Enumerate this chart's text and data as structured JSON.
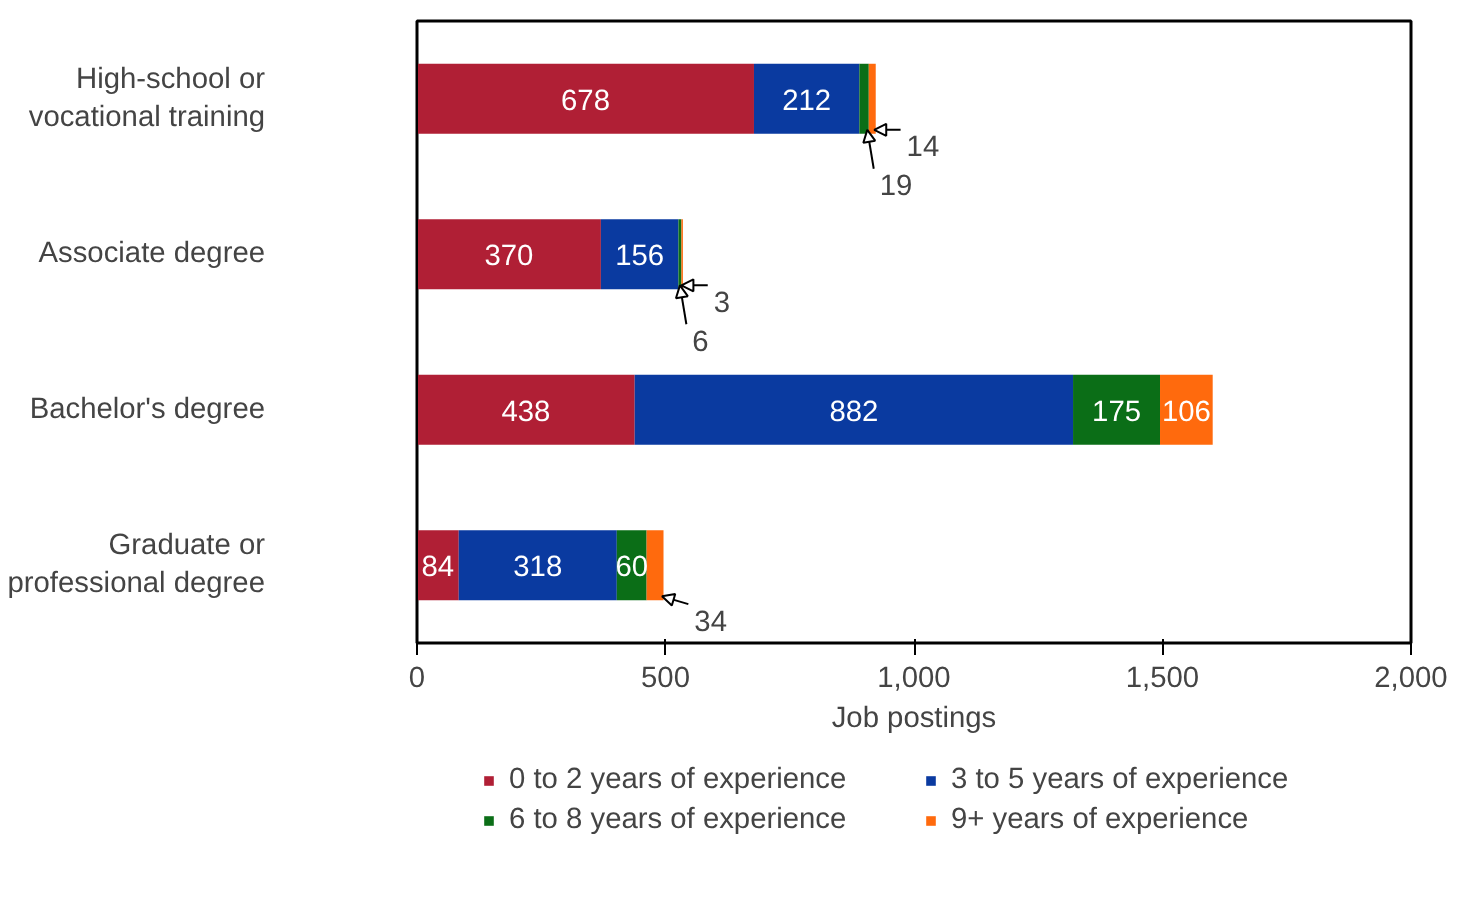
{
  "chart_data": {
    "type": "bar",
    "orientation": "horizontal",
    "stacked": true,
    "categories": [
      "High-school or vocational training",
      "Associate degree",
      "Bachelor's degree",
      "Graduate or professional degree"
    ],
    "series": [
      {
        "name": "0 to 2 years of experience",
        "color": "#b01f35",
        "values": [
          678,
          370,
          438,
          84
        ]
      },
      {
        "name": "3 to 5 years of experience",
        "color": "#0a3aa0",
        "values": [
          212,
          156,
          882,
          318
        ]
      },
      {
        "name": "6 to 8 years of experience",
        "color": "#0b6e17",
        "values": [
          19,
          6,
          175,
          60
        ]
      },
      {
        "name": "9+ years of experience",
        "color": "#ff6a0d",
        "values": [
          14,
          3,
          106,
          34
        ]
      }
    ],
    "xlim": [
      0,
      2000
    ],
    "xticks": [
      0,
      500,
      {
        "value": 1000,
        "label": "1,000"
      },
      {
        "value": 1500,
        "label": "1,500"
      },
      {
        "value": 2000,
        "label": "2,000"
      }
    ],
    "xlabel": "Job postings",
    "data_labels": true,
    "legend": "bottom",
    "grid": false
  }
}
